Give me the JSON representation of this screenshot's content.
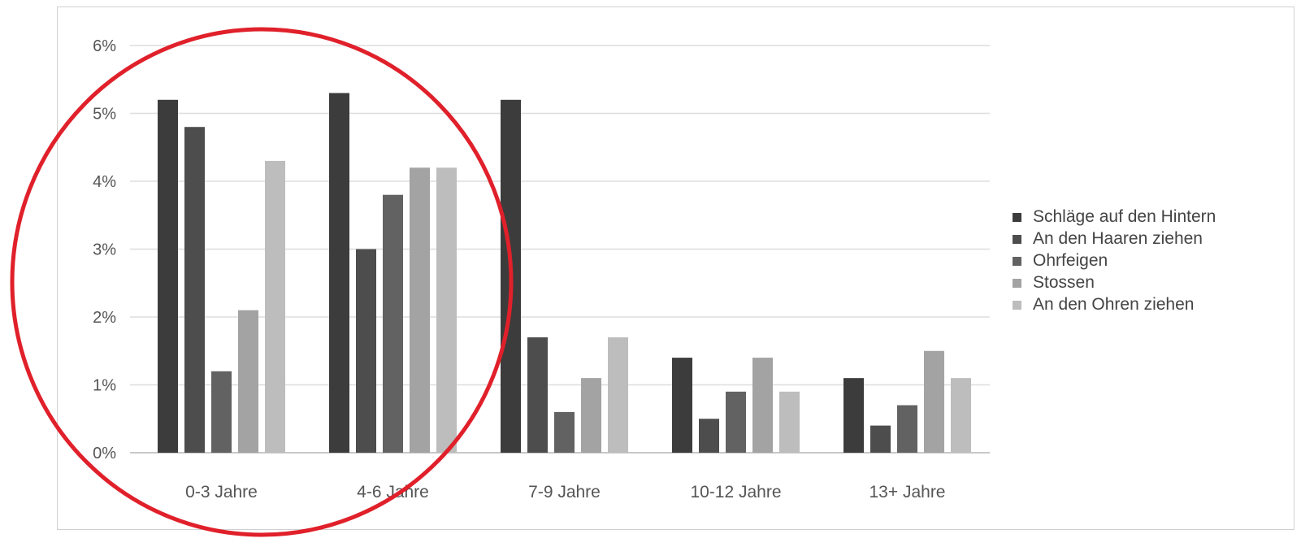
{
  "chart_data": {
    "type": "bar",
    "title": "",
    "xlabel": "",
    "ylabel": "",
    "ylim": [
      0,
      6
    ],
    "y_ticks": [
      "0%",
      "1%",
      "2%",
      "3%",
      "4%",
      "5%",
      "6%"
    ],
    "grid": true,
    "legend_position": "right",
    "categories": [
      "0-3 Jahre",
      "4-6 Jahre",
      "7-9 Jahre",
      "10-12 Jahre",
      "13+ Jahre"
    ],
    "series": [
      {
        "name": "Schläge auf den Hintern",
        "color": "#3c3c3c",
        "values": [
          5.2,
          5.3,
          5.2,
          1.4,
          1.1
        ]
      },
      {
        "name": "An den Haaren ziehen",
        "color": "#4d4d4d",
        "values": [
          4.8,
          3.0,
          1.7,
          0.5,
          0.4
        ]
      },
      {
        "name": "Ohrfeigen",
        "color": "#626262",
        "values": [
          1.2,
          3.8,
          0.6,
          0.9,
          0.7
        ]
      },
      {
        "name": "Stossen",
        "color": "#a3a3a3",
        "values": [
          2.1,
          4.2,
          1.1,
          1.4,
          1.5
        ]
      },
      {
        "name": "An den Ohren ziehen",
        "color": "#bdbdbd",
        "values": [
          4.3,
          4.2,
          1.7,
          0.9,
          1.1
        ]
      }
    ]
  },
  "annotation": {
    "shape": "circle",
    "color": "#e0202a"
  }
}
